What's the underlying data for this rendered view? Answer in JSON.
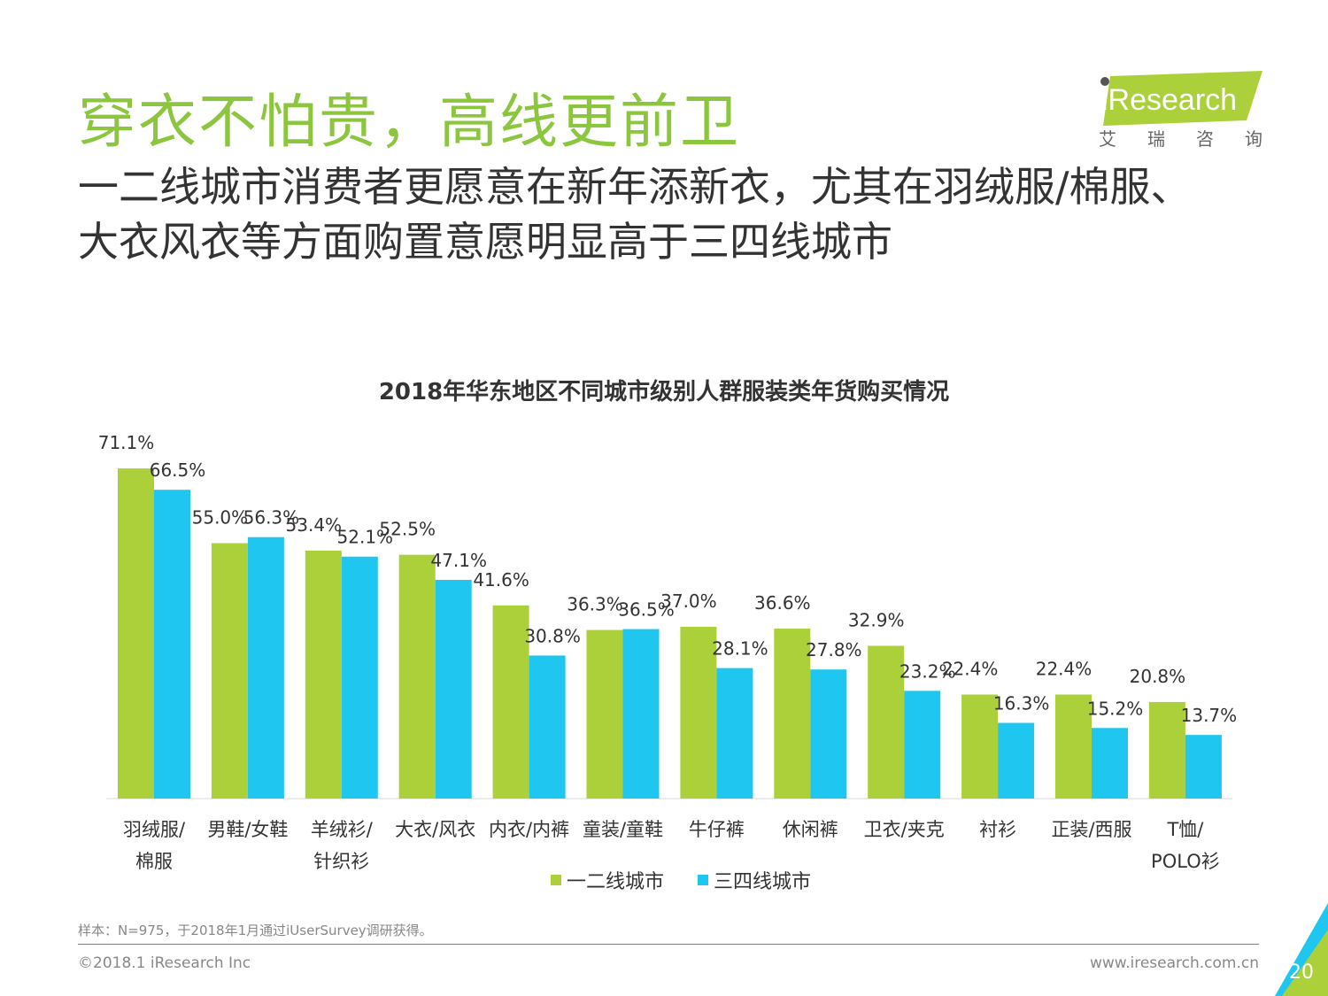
{
  "header": {
    "title": "穿衣不怕贵，高线更前卫",
    "subtitle": "一二线城市消费者更愿意在新年添新衣，尤其在羽绒服/棉服、大衣风衣等方面购置意愿明显高于三四线城市"
  },
  "logo": {
    "brand": "iResearch",
    "cn": [
      "艾",
      "瑞",
      "咨",
      "询"
    ]
  },
  "colors": {
    "title": "#8cc63f",
    "series1": "#acd03a",
    "series2": "#1fc6f0"
  },
  "chart_data": {
    "type": "bar",
    "title": "2018年华东地区不同城市级别人群服装类年货购买情况",
    "categories": [
      [
        "羽绒服/",
        "棉服"
      ],
      [
        "男鞋/女鞋"
      ],
      [
        "羊绒衫/",
        "针织衫"
      ],
      [
        "大衣/风衣"
      ],
      [
        "内衣/内裤"
      ],
      [
        "童装/童鞋"
      ],
      [
        "牛仔裤"
      ],
      [
        "休闲裤"
      ],
      [
        "卫衣/夹克"
      ],
      [
        "衬衫"
      ],
      [
        "正装/西服"
      ],
      [
        "T恤/",
        "POLO衫"
      ]
    ],
    "series": [
      {
        "name": "一二线城市",
        "values": [
          71.1,
          55.0,
          53.4,
          52.5,
          41.6,
          36.3,
          37.0,
          36.6,
          32.9,
          22.4,
          22.4,
          20.8
        ]
      },
      {
        "name": "三四线城市",
        "values": [
          66.5,
          56.3,
          52.1,
          47.1,
          30.8,
          36.5,
          28.1,
          27.8,
          23.2,
          16.3,
          15.2,
          13.7
        ]
      }
    ],
    "value_suffix": "%",
    "ylim": [
      0,
      80
    ],
    "grid": false,
    "legend_position": "bottom"
  },
  "footer": {
    "note": "样本：N=975，于2018年1月通过iUserSurvey调研获得。",
    "copyright": "©2018.1 iResearch Inc",
    "website": "www.iresearch.com.cn",
    "page": "20"
  }
}
